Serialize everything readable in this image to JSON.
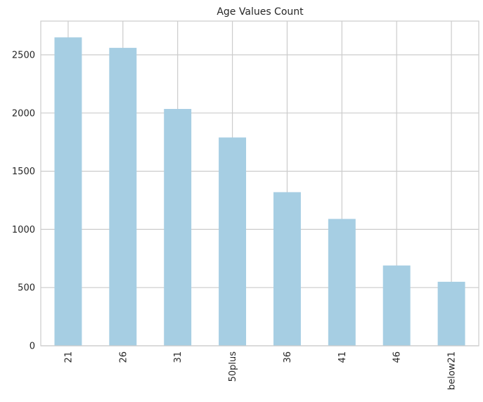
{
  "chart_data": {
    "type": "bar",
    "title": "Age Values Count",
    "xlabel": "",
    "ylabel": "",
    "categories": [
      "21",
      "26",
      "31",
      "50plus",
      "36",
      "41",
      "46",
      "below21"
    ],
    "values": [
      2650,
      2560,
      2035,
      1790,
      1320,
      1090,
      690,
      550
    ],
    "ylim": [
      0,
      2790
    ],
    "yticks": [
      0,
      500,
      1000,
      1500,
      2000,
      2500
    ],
    "grid": true,
    "legend": "none",
    "colors": {
      "bar": "#a6cee3",
      "grid": "#cccccc",
      "text": "#262626",
      "background": "#ffffff"
    }
  }
}
